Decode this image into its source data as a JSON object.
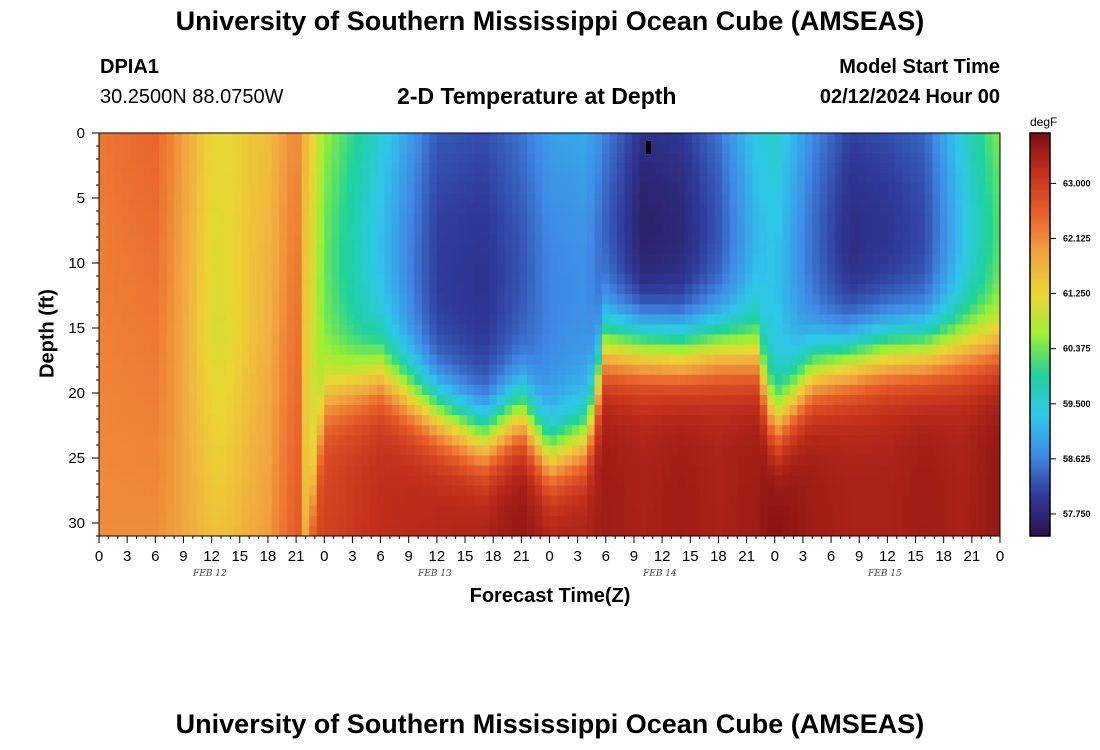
{
  "header": {
    "title": "University of Southern Mississippi Ocean Cube (AMSEAS)",
    "station_id": "DPIA1",
    "station_coords": "30.2500N  88.0750W",
    "subtitle": "2-D Temperature at Depth",
    "model_start_label": "Model Start Time",
    "model_start_value": "02/12/2024 Hour 00"
  },
  "footer": {
    "title": "University of Southern Mississippi Ocean Cube (AMSEAS)"
  },
  "colors": {
    "background": "#ffffff",
    "palette": [
      "#2a1048",
      "#2f3a9a",
      "#3f8ae6",
      "#2fc7ea",
      "#1fd39a",
      "#9bf032",
      "#ecd534",
      "#f2a541",
      "#e9602a",
      "#c4301c",
      "#7d0c10"
    ]
  },
  "chart_data": {
    "type": "heatmap",
    "xlabel": "Forecast Time(Z)",
    "ylabel": "Depth (ft)",
    "x_range_hours": [
      0,
      96
    ],
    "x_tick_labels": [
      "0",
      "3",
      "6",
      "9",
      "12",
      "15",
      "18",
      "21",
      "0",
      "3",
      "6",
      "9",
      "12",
      "15",
      "18",
      "21",
      "0",
      "3",
      "6",
      "9",
      "12",
      "15",
      "18",
      "21",
      "0",
      "3",
      "6",
      "9",
      "12",
      "15",
      "18",
      "21",
      "0"
    ],
    "date_labels": [
      {
        "hour": 12,
        "label": "FEB 12"
      },
      {
        "hour": 36,
        "label": "FEB 13"
      },
      {
        "hour": 60,
        "label": "FEB 14"
      },
      {
        "hour": 84,
        "label": "FEB 15"
      }
    ],
    "y_range_ft": [
      0,
      31
    ],
    "y_tick_values": [
      0,
      5,
      10,
      15,
      20,
      25,
      30
    ],
    "colorbar": {
      "unit": "degF",
      "tick_labels": [
        "63.000",
        "62.125",
        "61.250",
        "60.375",
        "59.500",
        "58.625",
        "57.750"
      ],
      "range": [
        57.4,
        63.8
      ]
    },
    "description_profile": {
      "hours": [
        0,
        6,
        12,
        18,
        21,
        24,
        30,
        36,
        41,
        45,
        48,
        52,
        54,
        58,
        62,
        66,
        70,
        72,
        76,
        80,
        84,
        88,
        92,
        96
      ],
      "surface_temp": [
        62.3,
        62.5,
        61.5,
        61.6,
        62.2,
        60.6,
        59.5,
        58.3,
        58.2,
        58.5,
        58.9,
        59.0,
        58.6,
        57.9,
        58.0,
        58.5,
        59.4,
        59.6,
        58.7,
        58.1,
        58.2,
        58.4,
        59.5,
        60.5
      ],
      "bottom_temp": [
        62.1,
        62.1,
        61.8,
        62.0,
        62.6,
        62.9,
        63.2,
        63.3,
        63.4,
        63.6,
        63.4,
        63.4,
        63.5,
        63.4,
        63.5,
        63.4,
        63.5,
        63.7,
        63.5,
        63.4,
        63.4,
        63.5,
        63.4,
        63.6
      ],
      "thermocline_ft": [
        40,
        40,
        40,
        40,
        40,
        20.5,
        18.5,
        21.5,
        23.5,
        21.5,
        25,
        23.5,
        16.5,
        16.5,
        16.8,
        16.5,
        17.0,
        22.5,
        18.5,
        17.5,
        16.8,
        16.8,
        16.5,
        16.5
      ]
    }
  }
}
